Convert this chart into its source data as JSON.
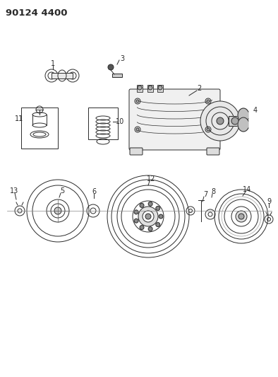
{
  "title": "90124 4400",
  "bg_color": "#ffffff",
  "lc": "#2a2a2a",
  "figsize": [
    3.94,
    5.33
  ],
  "dpi": 100,
  "title_fs": 9,
  "label_fs": 7,
  "lw": 0.7
}
